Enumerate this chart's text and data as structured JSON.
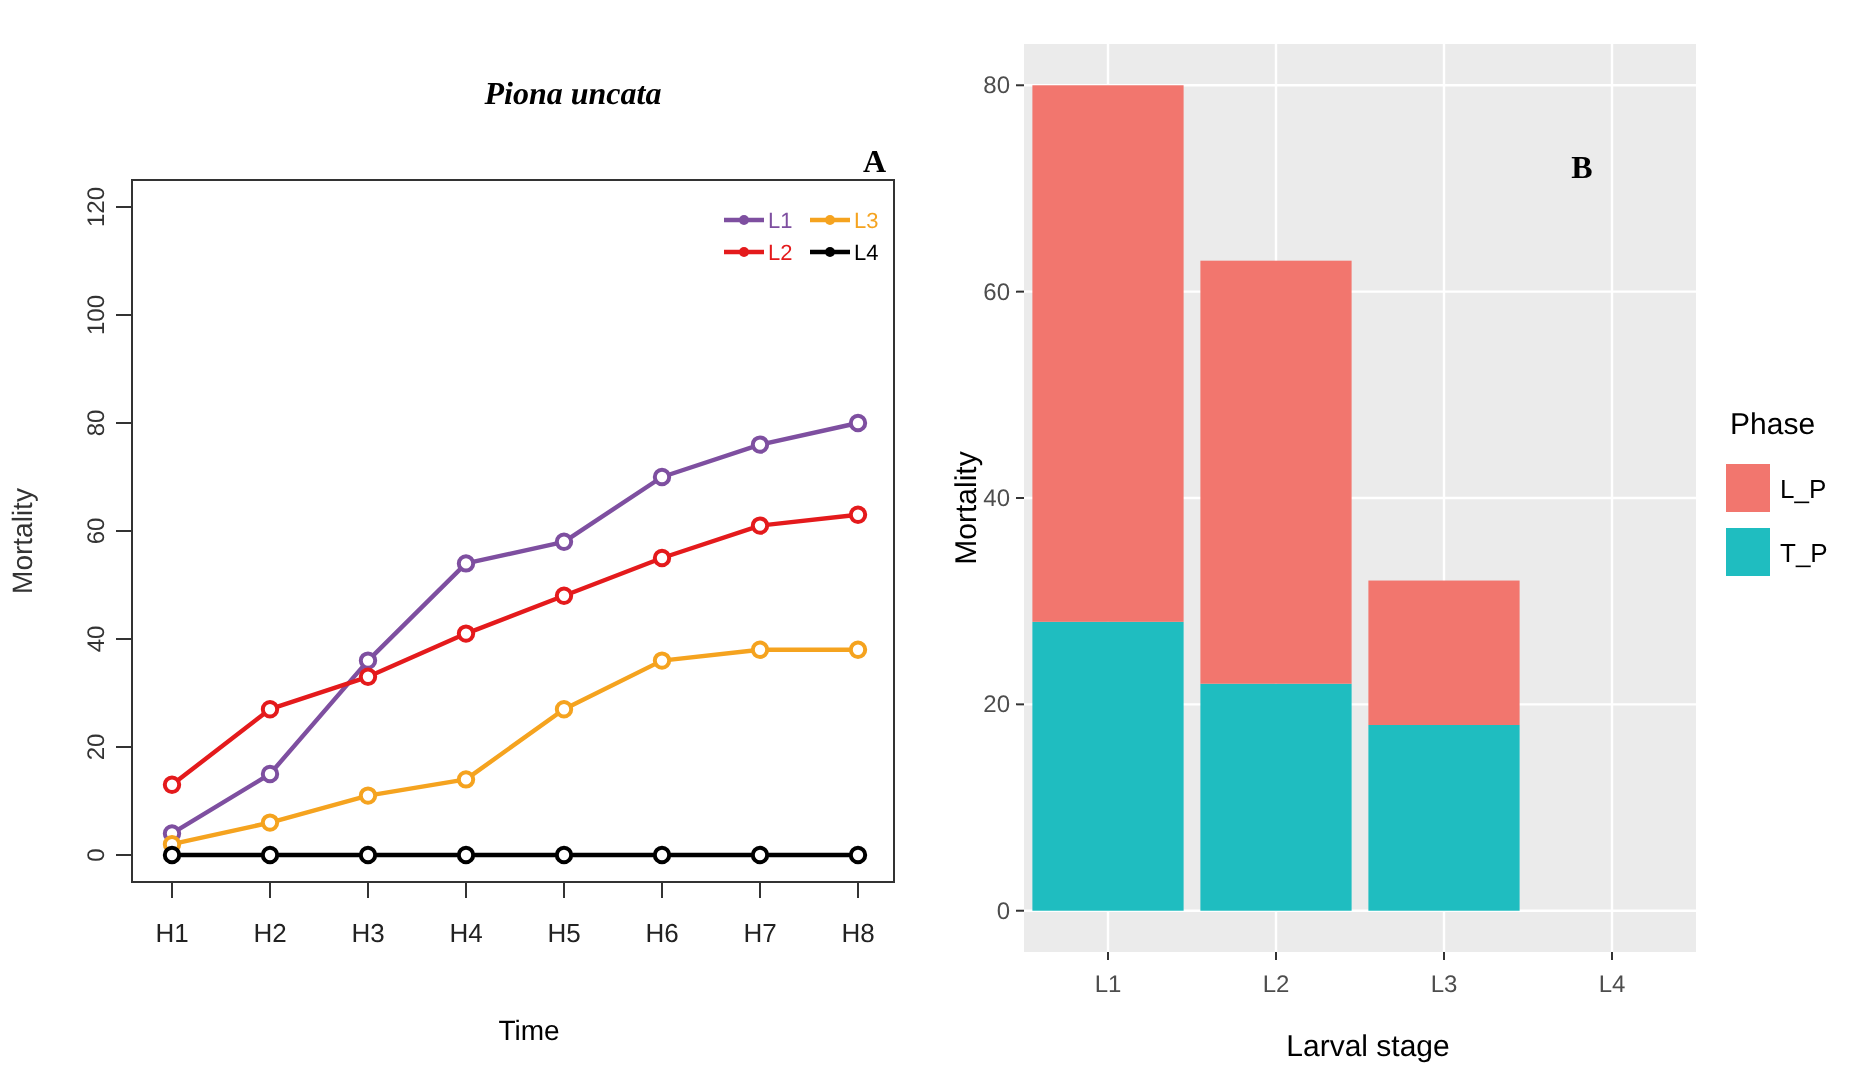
{
  "chart_data": [
    {
      "type": "line",
      "title": "Piona uncata",
      "annotations": [
        "A"
      ],
      "xlabel": "Time",
      "ylabel": "Mortality",
      "categories": [
        "H1",
        "H2",
        "H3",
        "H4",
        "H5",
        "H6",
        "H7",
        "H8"
      ],
      "series": [
        {
          "name": "L1",
          "color": "#7e4fa0",
          "values": [
            4,
            15,
            36,
            54,
            58,
            70,
            76,
            80
          ]
        },
        {
          "name": "L2",
          "color": "#e41a1c",
          "values": [
            13,
            27,
            33,
            41,
            48,
            55,
            61,
            63
          ]
        },
        {
          "name": "L3",
          "color": "#f5a31f",
          "values": [
            2,
            6,
            11,
            14,
            27,
            36,
            38,
            38
          ]
        },
        {
          "name": "L4",
          "color": "#000000",
          "values": [
            0,
            0,
            0,
            0,
            0,
            0,
            0,
            0
          ]
        }
      ],
      "ylim": [
        -5,
        125
      ],
      "yticks": [
        0,
        20,
        40,
        60,
        80,
        100,
        120
      ],
      "grid": false,
      "legend": "top right",
      "marker": "circle",
      "line_style": "solid"
    },
    {
      "type": "bar",
      "stacked": true,
      "annotations": [
        "B"
      ],
      "xlabel": "Larval stage",
      "ylabel": "Mortality",
      "legend_title": "Phase",
      "categories": [
        "L1",
        "L2",
        "L3",
        "L4"
      ],
      "series": [
        {
          "name": "T_P",
          "color": "#1fbdc0",
          "values": [
            28,
            22,
            18,
            0
          ]
        },
        {
          "name": "L_P",
          "color": "#f2766e",
          "values": [
            52,
            41,
            14,
            0
          ]
        }
      ],
      "ylim": [
        -4,
        84
      ],
      "yticks": [
        0,
        20,
        40,
        60,
        80
      ],
      "grid": true,
      "legend": "right"
    }
  ]
}
